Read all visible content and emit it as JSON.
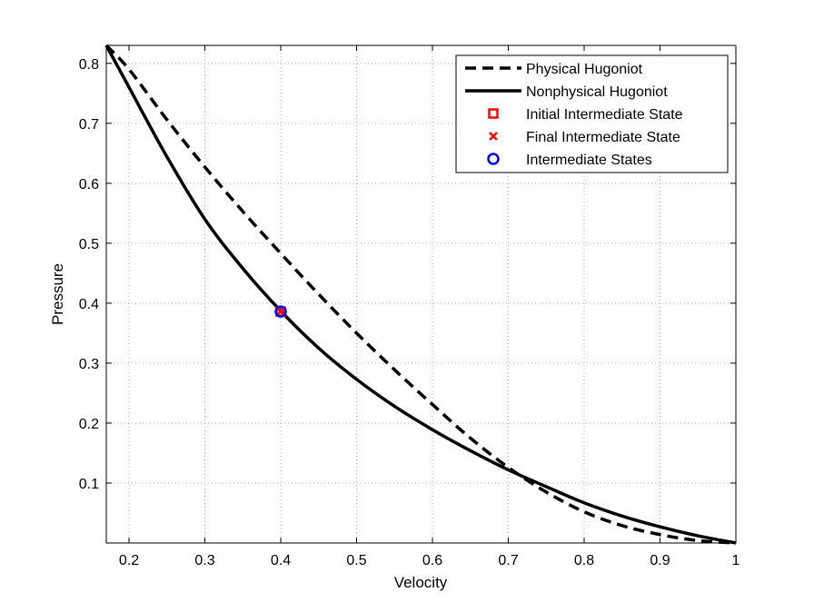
{
  "chart_data": {
    "type": "line",
    "title": "",
    "xlabel": "Velocity",
    "ylabel": "Pressure",
    "xlim": [
      0.17,
      1.0
    ],
    "ylim": [
      0.0,
      0.83
    ],
    "xticks": [
      0.2,
      0.3,
      0.4,
      0.5,
      0.6,
      0.7,
      0.8,
      0.9,
      1.0
    ],
    "xtick_labels": [
      "0.2",
      "0.3",
      "0.4",
      "0.5",
      "0.6",
      "0.7",
      "0.8",
      "0.9",
      "1"
    ],
    "yticks": [
      0.1,
      0.2,
      0.3,
      0.4,
      0.5,
      0.6,
      0.7,
      0.8
    ],
    "ytick_labels": [
      "0.1",
      "0.2",
      "0.3",
      "0.4",
      "0.5",
      "0.6",
      "0.7",
      "0.8"
    ],
    "grid": true,
    "legend_position": "top-right",
    "series": [
      {
        "name": "Physical Hugoniot",
        "style": "dashed",
        "color": "#000000",
        "x": [
          0.17,
          0.2,
          0.25,
          0.3,
          0.35,
          0.4,
          0.45,
          0.5,
          0.55,
          0.6,
          0.65,
          0.7,
          0.75,
          0.8,
          0.85,
          0.9,
          0.95,
          1.0
        ],
        "y": [
          0.83,
          0.79,
          0.706,
          0.627,
          0.553,
          0.483,
          0.415,
          0.35,
          0.289,
          0.231,
          0.175,
          0.126,
          0.085,
          0.052,
          0.029,
          0.014,
          0.004,
          0.0
        ]
      },
      {
        "name": "Nonphysical Hugoniot",
        "style": "solid",
        "color": "#000000",
        "x": [
          0.17,
          0.2,
          0.25,
          0.3,
          0.35,
          0.4,
          0.45,
          0.5,
          0.55,
          0.6,
          0.65,
          0.7,
          0.75,
          0.8,
          0.85,
          0.9,
          0.95,
          1.0
        ],
        "y": [
          0.83,
          0.76,
          0.644,
          0.54,
          0.458,
          0.387,
          0.325,
          0.273,
          0.228,
          0.189,
          0.154,
          0.122,
          0.094,
          0.067,
          0.045,
          0.027,
          0.012,
          0.0
        ]
      },
      {
        "name": "Initial Intermediate State",
        "style": "marker",
        "marker": "square",
        "color": "#ff0000",
        "x": [
          0.4
        ],
        "y": [
          0.386
        ]
      },
      {
        "name": "Final Intermediate State",
        "style": "marker",
        "marker": "x",
        "color": "#ff0000",
        "x": [
          0.4
        ],
        "y": [
          0.386
        ]
      },
      {
        "name": "Intermediate States",
        "style": "marker",
        "marker": "circle",
        "color": "#0000ff",
        "x": [
          0.4
        ],
        "y": [
          0.386
        ]
      }
    ]
  }
}
